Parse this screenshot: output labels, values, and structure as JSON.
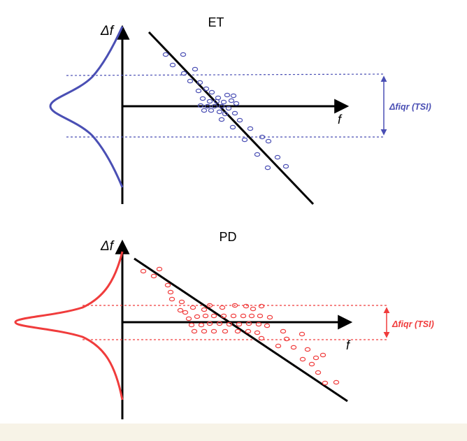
{
  "colors": {
    "et": "#4a4fb4",
    "pd": "#f03c3c",
    "axis": "#000000",
    "footer": "#f7f3e7"
  },
  "panels": [
    {
      "id": "et",
      "title": "ET",
      "y_axis_label": "Δf",
      "x_axis_label": "f",
      "bracket_label": "Δfiqr (TSI)"
    },
    {
      "id": "pd",
      "title": "PD",
      "y_axis_label": "Δf",
      "x_axis_label": "f",
      "bracket_label": "Δfiqr (TSI)"
    }
  ]
}
